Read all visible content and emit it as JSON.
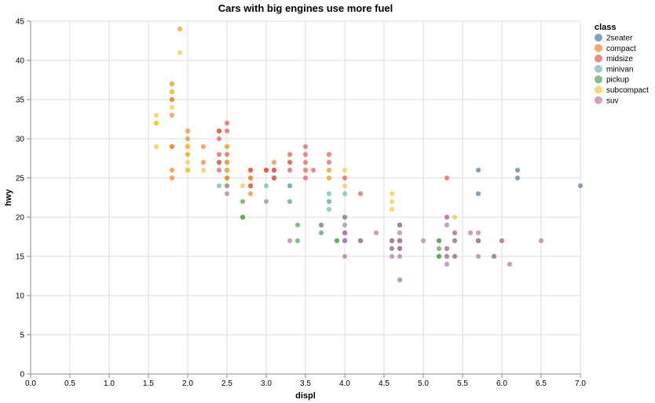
{
  "chart_data": {
    "type": "scatter",
    "title": "Cars with big engines use more fuel",
    "xlabel": "displ",
    "ylabel": "hwy",
    "xlim": [
      0,
      7
    ],
    "ylim": [
      0,
      45
    ],
    "x_ticks": [
      "0.0",
      "0.5",
      "1.0",
      "1.5",
      "2.0",
      "2.5",
      "3.0",
      "3.5",
      "4.0",
      "4.5",
      "5.0",
      "5.5",
      "6.0",
      "6.5",
      "7.0"
    ],
    "y_ticks": [
      "0",
      "5",
      "10",
      "15",
      "20",
      "25",
      "30",
      "35",
      "40",
      "45"
    ],
    "grid": true,
    "legend_title": "class",
    "legend_position": "top-right",
    "series": [
      {
        "name": "2seater",
        "color": "#4c78a8",
        "points": [
          [
            5.7,
            26
          ],
          [
            5.7,
            23
          ],
          [
            6.2,
            26
          ],
          [
            6.2,
            25
          ],
          [
            7.0,
            24
          ]
        ]
      },
      {
        "name": "compact",
        "color": "#f58518",
        "points": [
          [
            1.8,
            29
          ],
          [
            1.8,
            29
          ],
          [
            2.0,
            31
          ],
          [
            2.0,
            30
          ],
          [
            2.8,
            26
          ],
          [
            2.8,
            26
          ],
          [
            3.1,
            27
          ],
          [
            1.8,
            26
          ],
          [
            1.8,
            25
          ],
          [
            2.0,
            28
          ],
          [
            2.0,
            29
          ],
          [
            2.8,
            25
          ],
          [
            2.8,
            25
          ],
          [
            3.1,
            25
          ],
          [
            3.1,
            26
          ],
          [
            2.2,
            27
          ],
          [
            2.2,
            29
          ],
          [
            2.4,
            31
          ],
          [
            2.4,
            31
          ],
          [
            3.0,
            26
          ],
          [
            3.0,
            26
          ],
          [
            3.3,
            27
          ],
          [
            2.0,
            29
          ],
          [
            2.0,
            29
          ],
          [
            2.0,
            28
          ],
          [
            2.0,
            29
          ],
          [
            2.8,
            24
          ],
          [
            1.9,
            44
          ],
          [
            2.0,
            29
          ],
          [
            2.0,
            26
          ],
          [
            2.0,
            29
          ],
          [
            2.0,
            29
          ],
          [
            2.5,
            29
          ],
          [
            2.5,
            29
          ],
          [
            2.8,
            23
          ],
          [
            2.8,
            24
          ],
          [
            1.8,
            36
          ],
          [
            1.8,
            36
          ],
          [
            2.0,
            29
          ],
          [
            2.0,
            26
          ],
          [
            2.5,
            25
          ],
          [
            2.5,
            27
          ],
          [
            2.5,
            29
          ],
          [
            2.5,
            26
          ],
          [
            2.5,
            25
          ],
          [
            1.8,
            33
          ],
          [
            1.8,
            35
          ],
          [
            1.8,
            37
          ],
          [
            1.8,
            35
          ],
          [
            2.0,
            29
          ]
        ]
      },
      {
        "name": "midsize",
        "color": "#e45756",
        "points": [
          [
            2.4,
            30
          ],
          [
            2.4,
            27
          ],
          [
            3.1,
            26
          ],
          [
            3.5,
            29
          ],
          [
            3.6,
            26
          ],
          [
            2.4,
            31
          ],
          [
            3.0,
            26
          ],
          [
            3.3,
            27
          ],
          [
            3.3,
            28
          ],
          [
            3.3,
            26
          ],
          [
            3.8,
            26
          ],
          [
            3.8,
            25
          ],
          [
            4.0,
            25
          ],
          [
            3.8,
            28
          ],
          [
            3.8,
            27
          ],
          [
            4.2,
            23
          ],
          [
            5.3,
            25
          ],
          [
            2.5,
            32
          ],
          [
            2.5,
            31
          ],
          [
            2.5,
            28
          ],
          [
            3.0,
            26
          ],
          [
            3.5,
            28
          ],
          [
            3.5,
            27
          ],
          [
            3.5,
            26
          ],
          [
            3.5,
            25
          ],
          [
            2.8,
            26
          ],
          [
            2.8,
            24
          ],
          [
            3.1,
            25
          ],
          [
            2.4,
            27
          ],
          [
            2.5,
            26
          ],
          [
            2.5,
            27
          ],
          [
            3.1,
            26
          ],
          [
            3.1,
            25
          ],
          [
            2.4,
            28
          ],
          [
            2.4,
            26
          ],
          [
            2.5,
            27
          ],
          [
            2.5,
            27
          ]
        ]
      },
      {
        "name": "minivan",
        "color": "#72b7b2",
        "points": [
          [
            2.4,
            24
          ],
          [
            3.0,
            24
          ],
          [
            3.3,
            22
          ],
          [
            3.3,
            22
          ],
          [
            3.3,
            24
          ],
          [
            3.3,
            24
          ],
          [
            3.3,
            24
          ],
          [
            3.8,
            22
          ],
          [
            3.8,
            21
          ],
          [
            3.8,
            23
          ],
          [
            4.0,
            23
          ],
          [
            3.8,
            22
          ],
          [
            4.0,
            17
          ]
        ]
      },
      {
        "name": "pickup",
        "color": "#54a24b",
        "points": [
          [
            2.7,
            20
          ],
          [
            2.7,
            20
          ],
          [
            2.7,
            22
          ],
          [
            3.4,
            17
          ],
          [
            3.4,
            19
          ],
          [
            4.0,
            18
          ],
          [
            4.0,
            20
          ],
          [
            4.7,
            17
          ],
          [
            4.7,
            17
          ],
          [
            4.7,
            16
          ],
          [
            4.7,
            17
          ],
          [
            5.2,
            15
          ],
          [
            5.2,
            17
          ],
          [
            5.7,
            17
          ],
          [
            5.9,
            15
          ],
          [
            4.7,
            19
          ],
          [
            4.7,
            19
          ],
          [
            4.7,
            12
          ],
          [
            5.2,
            17
          ],
          [
            5.7,
            17
          ],
          [
            4.6,
            17
          ],
          [
            5.4,
            17
          ],
          [
            5.4,
            15
          ],
          [
            3.7,
            19
          ],
          [
            3.7,
            18
          ],
          [
            3.9,
            17
          ],
          [
            3.9,
            17
          ],
          [
            4.2,
            17
          ],
          [
            4.2,
            17
          ],
          [
            4.6,
            16
          ],
          [
            5.2,
            16
          ],
          [
            5.2,
            15
          ],
          [
            4.7,
            17
          ],
          [
            4.7,
            16
          ],
          [
            4.7,
            17
          ]
        ]
      },
      {
        "name": "subcompact",
        "color": "#eeca3b",
        "points": [
          [
            1.6,
            33
          ],
          [
            1.6,
            32
          ],
          [
            1.6,
            32
          ],
          [
            1.6,
            29
          ],
          [
            1.8,
            34
          ],
          [
            1.8,
            36
          ],
          [
            1.8,
            36
          ],
          [
            1.9,
            41
          ],
          [
            2.0,
            29
          ],
          [
            2.0,
            26
          ],
          [
            2.0,
            27
          ],
          [
            2.0,
            26
          ],
          [
            2.2,
            26
          ],
          [
            2.5,
            24
          ],
          [
            2.5,
            26
          ],
          [
            2.7,
            24
          ],
          [
            3.8,
            25
          ],
          [
            3.8,
            26
          ],
          [
            4.0,
            24
          ],
          [
            4.0,
            26
          ],
          [
            4.6,
            22
          ],
          [
            4.6,
            23
          ],
          [
            5.4,
            20
          ],
          [
            4.6,
            21
          ],
          [
            1.9,
            44
          ],
          [
            2.0,
            28
          ],
          [
            2.5,
            29
          ],
          [
            2.5,
            27
          ],
          [
            2.0,
            26
          ],
          [
            2.0,
            29
          ],
          [
            2.5,
            24
          ],
          [
            1.6,
            32
          ]
        ]
      },
      {
        "name": "suv",
        "color": "#b279a2",
        "points": [
          [
            5.3,
            20
          ],
          [
            5.3,
            15
          ],
          [
            5.3,
            20
          ],
          [
            5.7,
            17
          ],
          [
            6.0,
            17
          ],
          [
            5.7,
            18
          ],
          [
            5.7,
            17
          ],
          [
            6.5,
            17
          ],
          [
            5.3,
            14
          ],
          [
            5.3,
            15
          ],
          [
            6.1,
            14
          ],
          [
            4.2,
            17
          ],
          [
            4.4,
            18
          ],
          [
            4.6,
            17
          ],
          [
            5.4,
            18
          ],
          [
            5.4,
            15
          ],
          [
            4.0,
            19
          ],
          [
            4.0,
            18
          ],
          [
            4.0,
            17
          ],
          [
            4.0,
            17
          ],
          [
            4.6,
            17
          ],
          [
            5.0,
            17
          ],
          [
            4.7,
            17
          ],
          [
            4.7,
            15
          ],
          [
            4.7,
            17
          ],
          [
            4.0,
            15
          ],
          [
            4.0,
            17
          ],
          [
            4.6,
            16
          ],
          [
            5.4,
            18
          ],
          [
            5.6,
            18
          ],
          [
            4.7,
            19
          ],
          [
            4.0,
            20
          ],
          [
            4.7,
            17
          ],
          [
            2.5,
            23
          ],
          [
            2.5,
            24
          ],
          [
            3.0,
            22
          ],
          [
            3.7,
            19
          ],
          [
            3.3,
            17
          ],
          [
            4.7,
            18
          ],
          [
            5.3,
            16
          ],
          [
            5.3,
            16
          ],
          [
            6.0,
            17
          ],
          [
            4.7,
            17
          ],
          [
            4.7,
            17
          ],
          [
            4.6,
            15
          ],
          [
            4.6,
            17
          ],
          [
            5.4,
            17
          ],
          [
            5.9,
            15
          ],
          [
            4.2,
            17
          ],
          [
            4.0,
            18
          ],
          [
            4.7,
            16
          ],
          [
            5.7,
            15
          ],
          [
            5.3,
            19
          ],
          [
            4.7,
            16
          ]
        ]
      }
    ]
  }
}
